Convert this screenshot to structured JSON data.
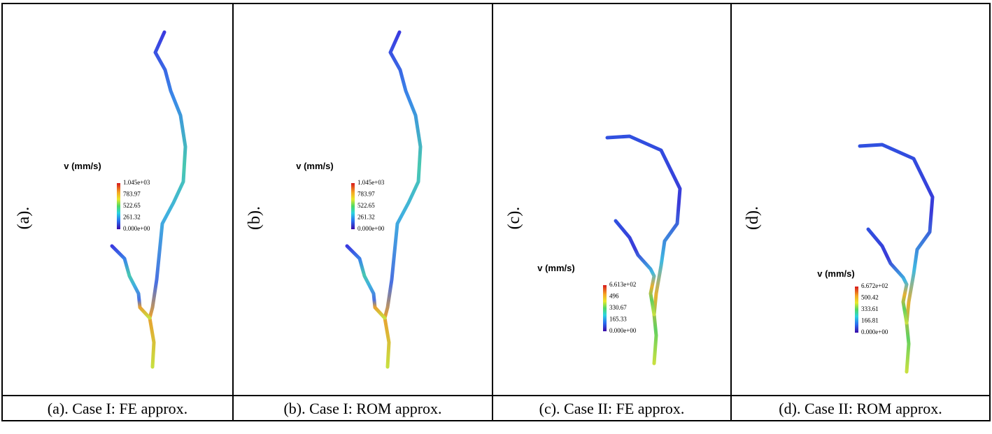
{
  "panels": [
    {
      "side_label": "(a).",
      "colorbar": {
        "title": "v (mm/s)",
        "ticks": [
          "1.045e+03",
          "783.97",
          "522.65",
          "261.32",
          "0.000e+00"
        ]
      },
      "caption": "(a). Case I: FE approx."
    },
    {
      "side_label": "(b).",
      "colorbar": {
        "title": "v (mm/s)",
        "ticks": [
          "1.045e+03",
          "783.97",
          "522.65",
          "261.32",
          "0.000e+00"
        ]
      },
      "caption": "(b). Case I: ROM approx."
    },
    {
      "side_label": "(c).",
      "colorbar": {
        "title": "v (mm/s)",
        "ticks": [
          "6.613e+02",
          "496",
          "330.67",
          "165.33",
          "0.000e+00"
        ]
      },
      "caption": "(c). Case II: FE approx."
    },
    {
      "side_label": "(d).",
      "colorbar": {
        "title": "v (mm/s)",
        "ticks": [
          "6.672e+02",
          "500.42",
          "333.61",
          "166.81",
          "0.000e+00"
        ]
      },
      "caption": "(d). Case II: ROM approx."
    }
  ]
}
